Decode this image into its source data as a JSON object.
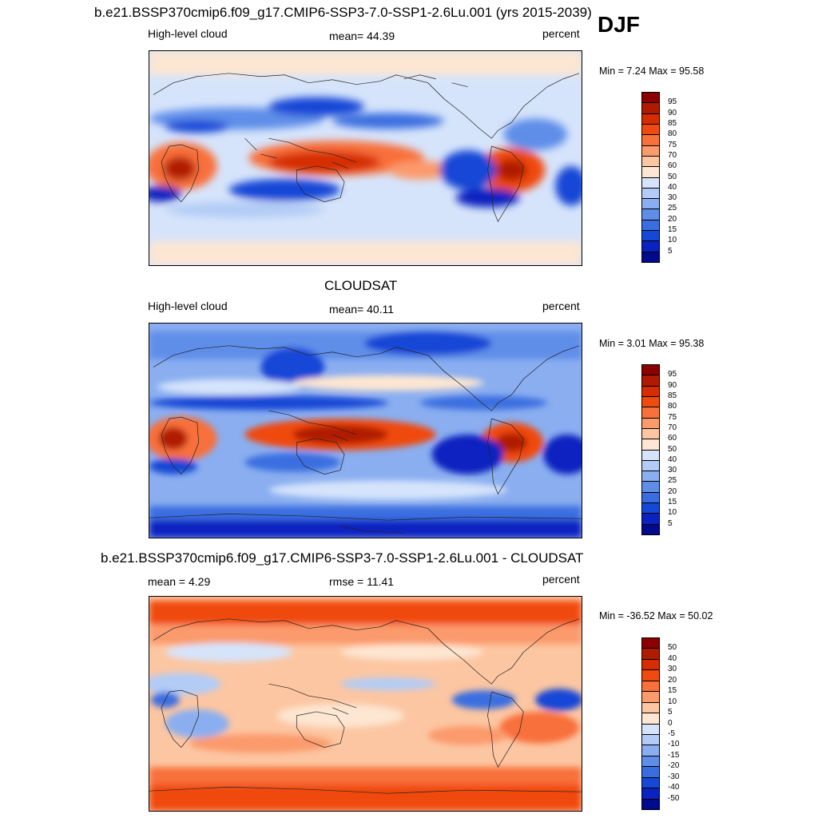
{
  "season": "DJF",
  "panels": [
    {
      "title": "b.e21.BSSP370cmip6.f09_g17.CMIP6-SSP3-7.0-SSP1-2.6Lu.001 (yrs 2015-2039)",
      "left_label": "High-level cloud",
      "center_label": "mean=  44.39",
      "right_label": "percent",
      "minmax": "Min =   7.24 Max =  95.58"
    },
    {
      "title": "CLOUDSAT",
      "left_label": "High-level cloud",
      "center_label": "mean=  40.11",
      "right_label": "percent",
      "minmax": "Min =   3.01 Max =  95.38"
    },
    {
      "title": "b.e21.BSSP370cmip6.f09_g17.CMIP6-SSP3-7.0-SSP1-2.6Lu.001 - CLOUDSAT",
      "left_label": "mean =   4.29",
      "center_label": "rmse =  11.41",
      "right_label": "percent",
      "minmax": "Min = -36.52 Max =  50.02"
    }
  ],
  "colorbars": {
    "absolute": {
      "labels": [
        "95",
        "90",
        "85",
        "80",
        "75",
        "70",
        "60",
        "50",
        "40",
        "30",
        "25",
        "20",
        "15",
        "10",
        "5"
      ],
      "colors": [
        "#8b0000",
        "#b01a00",
        "#d52d00",
        "#f04a10",
        "#f8703a",
        "#fb9a6c",
        "#fcc6a2",
        "#fde6d2",
        "#d6e4fb",
        "#b2ccf6",
        "#8aaef0",
        "#5f8ee9",
        "#3a6ee0",
        "#1747d6",
        "#0a23c0",
        "#000a8c"
      ]
    },
    "difference": {
      "labels": [
        "50",
        "40",
        "30",
        "20",
        "15",
        "10",
        "5",
        "0",
        "-5",
        "-10",
        "-15",
        "-20",
        "-30",
        "-40",
        "-50"
      ],
      "colors": [
        "#8b0000",
        "#b01a00",
        "#d52d00",
        "#f04a10",
        "#f8703a",
        "#fb9a6c",
        "#fcc6a2",
        "#fde6d2",
        "#d6e4fb",
        "#b2ccf6",
        "#8aaef0",
        "#5f8ee9",
        "#3a6ee0",
        "#1747d6",
        "#0a23c0",
        "#000a8c"
      ]
    }
  },
  "chart_data": [
    {
      "type": "heatmap",
      "title": "b.e21.BSSP370cmip6.f09_g17.CMIP6-SSP3-7.0-SSP1-2.6Lu.001 (yrs 2015-2039)",
      "variable": "High-level cloud",
      "units": "percent",
      "season": "DJF",
      "mean": 44.39,
      "min": 7.24,
      "max": 95.58,
      "contour_levels": [
        5,
        10,
        15,
        20,
        25,
        30,
        40,
        50,
        60,
        70,
        75,
        80,
        85,
        90,
        95
      ]
    },
    {
      "type": "heatmap",
      "title": "CLOUDSAT",
      "variable": "High-level cloud",
      "units": "percent",
      "season": "DJF",
      "mean": 40.11,
      "min": 3.01,
      "max": 95.38,
      "contour_levels": [
        5,
        10,
        15,
        20,
        25,
        30,
        40,
        50,
        60,
        70,
        75,
        80,
        85,
        90,
        95
      ]
    },
    {
      "type": "heatmap",
      "title": "b.e21.BSSP370cmip6.f09_g17.CMIP6-SSP3-7.0-SSP1-2.6Lu.001 - CLOUDSAT",
      "units": "percent",
      "season": "DJF",
      "mean": 4.29,
      "rmse": 11.41,
      "min": -36.52,
      "max": 50.02,
      "contour_levels": [
        -50,
        -40,
        -30,
        -20,
        -15,
        -10,
        -5,
        0,
        5,
        10,
        15,
        20,
        30,
        40,
        50
      ]
    }
  ]
}
